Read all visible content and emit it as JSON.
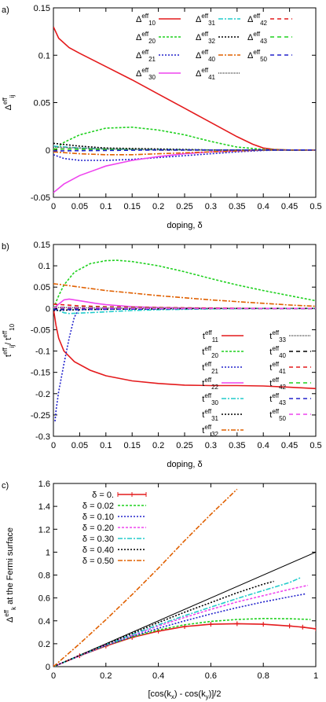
{
  "chart_data": [
    {
      "type": "line",
      "panel": "a)",
      "xlabel": "doping, δ",
      "ylabel": {
        "base": "Δ",
        "sup": "eff",
        "sub": "ij"
      },
      "xlim": [
        0,
        0.5
      ],
      "ylim": [
        -0.05,
        0.15
      ],
      "xticks": [
        "0",
        "0.05",
        "0.1",
        "0.15",
        "0.2",
        "0.25",
        "0.3",
        "0.35",
        "0.4",
        "0.45",
        "0.5"
      ],
      "yticks": [
        "-0.05",
        "0",
        "0.05",
        "0.1",
        "0.15"
      ],
      "legend_position": "top-right",
      "series": [
        {
          "name": "10",
          "label_base": "Δ",
          "color": "#e41a1c",
          "dash": "",
          "x": [
            0,
            0.01,
            0.03,
            0.05,
            0.1,
            0.15,
            0.2,
            0.25,
            0.3,
            0.35,
            0.38,
            0.4,
            0.42,
            0.45,
            0.5
          ],
          "y": [
            0.13,
            0.118,
            0.108,
            0.102,
            0.088,
            0.074,
            0.059,
            0.044,
            0.029,
            0.014,
            0.006,
            0.002,
            0.0005,
            0,
            0
          ]
        },
        {
          "name": "20",
          "label_base": "Δ",
          "color": "#1fd11f",
          "dash": "3,2",
          "x": [
            0,
            0.02,
            0.05,
            0.1,
            0.15,
            0.2,
            0.25,
            0.3,
            0.35,
            0.4,
            0.45,
            0.5
          ],
          "y": [
            0,
            0.008,
            0.016,
            0.023,
            0.024,
            0.021,
            0.016,
            0.009,
            0.003,
            0.0005,
            0,
            0
          ]
        },
        {
          "name": "21",
          "label_base": "Δ",
          "color": "#2222cc",
          "dash": "2,2",
          "x": [
            0,
            0.02,
            0.05,
            0.1,
            0.15,
            0.2,
            0.25,
            0.3,
            0.35,
            0.4,
            0.45,
            0.5
          ],
          "y": [
            -0.005,
            -0.009,
            -0.011,
            -0.011,
            -0.01,
            -0.008,
            -0.006,
            -0.004,
            -0.002,
            -0.0005,
            0,
            0
          ]
        },
        {
          "name": "30",
          "label_base": "Δ",
          "color": "#ee44ee",
          "dash": "",
          "x": [
            0,
            0.02,
            0.05,
            0.1,
            0.15,
            0.2,
            0.25,
            0.3,
            0.35,
            0.4,
            0.45,
            0.5
          ],
          "y": [
            -0.045,
            -0.036,
            -0.027,
            -0.017,
            -0.011,
            -0.007,
            -0.004,
            -0.002,
            -0.001,
            0,
            0,
            0
          ]
        },
        {
          "name": "31",
          "label_base": "Δ",
          "color": "#22cccc",
          "dash": "6,2,2,2",
          "x": [
            0,
            0.05,
            0.1,
            0.2,
            0.3,
            0.4,
            0.5
          ],
          "y": [
            0.004,
            0.002,
            0.001,
            0.0005,
            0,
            0,
            0
          ]
        },
        {
          "name": "32",
          "label_base": "Δ",
          "color": "#000000",
          "dash": "2,2",
          "x": [
            0,
            0.05,
            0.1,
            0.2,
            0.3,
            0.4,
            0.5
          ],
          "y": [
            0.007,
            0.004,
            0.002,
            0.001,
            0,
            0,
            0
          ]
        },
        {
          "name": "40",
          "label_base": "Δ",
          "color": "#e06000",
          "dash": "6,2,2,2",
          "x": [
            0,
            0.05,
            0.1,
            0.15,
            0.2,
            0.3,
            0.4,
            0.5
          ],
          "y": [
            -0.002,
            -0.004,
            -0.005,
            -0.005,
            -0.004,
            -0.002,
            0,
            0
          ]
        },
        {
          "name": "41",
          "label_base": "Δ",
          "color": "#555555",
          "dash": "1,1",
          "x": [
            0,
            0.05,
            0.1,
            0.2,
            0.3,
            0.4,
            0.5
          ],
          "y": [
            0.003,
            0.002,
            0.001,
            0,
            0,
            0,
            0
          ]
        },
        {
          "name": "42",
          "label_base": "Δ",
          "color": "#e41a1c",
          "dash": "5,4",
          "x": [
            0,
            0.1,
            0.2,
            0.3,
            0.4,
            0.5
          ],
          "y": [
            0.001,
            0.0005,
            0,
            0,
            0,
            0
          ]
        },
        {
          "name": "43",
          "label_base": "Δ",
          "color": "#1fd11f",
          "dash": "5,4",
          "x": [
            0,
            0.1,
            0.2,
            0.3,
            0.4,
            0.5
          ],
          "y": [
            0.001,
            0.0005,
            0,
            0,
            0,
            0
          ]
        },
        {
          "name": "50",
          "label_base": "Δ",
          "color": "#2222cc",
          "dash": "5,4",
          "x": [
            0,
            0.1,
            0.2,
            0.3,
            0.4,
            0.5
          ],
          "y": [
            -0.001,
            -0.0005,
            0,
            0,
            0,
            0
          ]
        }
      ]
    },
    {
      "type": "line",
      "panel": "b)",
      "xlabel": "doping, δ",
      "ylabel": {
        "base": "t",
        "sup": "eff",
        "sub": "ij",
        "base2": "/ t",
        "sup2": "eff",
        "sub2": "10"
      },
      "xlim": [
        0,
        0.5
      ],
      "ylim": [
        -0.3,
        0.15
      ],
      "xticks": [
        "0",
        "0.05",
        "0.1",
        "0.15",
        "0.2",
        "0.25",
        "0.3",
        "0.35",
        "0.4",
        "0.45",
        "0.5"
      ],
      "yticks": [
        "-0.3",
        "-0.25",
        "-0.2",
        "-0.15",
        "-0.1",
        "-0.05",
        "0",
        "0.05",
        "0.1",
        "0.15"
      ],
      "legend_position": "bottom-right",
      "series": [
        {
          "name": "11",
          "label_base": "t",
          "color": "#e41a1c",
          "dash": "",
          "x": [
            0,
            0.005,
            0.01,
            0.02,
            0.04,
            0.07,
            0.1,
            0.15,
            0.2,
            0.25,
            0.3,
            0.35,
            0.4,
            0.45,
            0.5
          ],
          "y": [
            0,
            -0.04,
            -0.07,
            -0.1,
            -0.125,
            -0.145,
            -0.158,
            -0.17,
            -0.176,
            -0.18,
            -0.181,
            -0.181,
            -0.182,
            -0.185,
            -0.188
          ]
        },
        {
          "name": "20",
          "label_base": "t",
          "color": "#1fd11f",
          "dash": "3,2",
          "x": [
            0,
            0.01,
            0.02,
            0.04,
            0.07,
            0.1,
            0.12,
            0.15,
            0.2,
            0.25,
            0.3,
            0.35,
            0.4,
            0.45,
            0.5
          ],
          "y": [
            0,
            0.03,
            0.055,
            0.085,
            0.105,
            0.112,
            0.113,
            0.11,
            0.1,
            0.086,
            0.07,
            0.055,
            0.042,
            0.03,
            0.018
          ]
        },
        {
          "name": "21",
          "label_base": "t",
          "color": "#2222cc",
          "dash": "2,2",
          "x": [
            0.003,
            0.005,
            0.01,
            0.02,
            0.03,
            0.04,
            0.05
          ],
          "y": [
            -0.265,
            -0.24,
            -0.195,
            -0.13,
            -0.07,
            -0.02,
            0
          ]
        },
        {
          "name": "22",
          "label_base": "t",
          "color": "#ee44ee",
          "dash": "",
          "x": [
            0,
            0.01,
            0.02,
            0.03,
            0.05,
            0.08,
            0.1,
            0.15,
            0.2,
            0.3,
            0.4,
            0.5
          ],
          "y": [
            0,
            0.01,
            0.02,
            0.022,
            0.018,
            0.012,
            0.009,
            0.004,
            0.002,
            0,
            0,
            0
          ]
        },
        {
          "name": "30",
          "label_base": "t",
          "color": "#22cccc",
          "dash": "6,2,2,2",
          "x": [
            0,
            0.01,
            0.02,
            0.03,
            0.05,
            0.1,
            0.15,
            0.2,
            0.3,
            0.4,
            0.5
          ],
          "y": [
            0,
            -0.005,
            -0.01,
            -0.012,
            -0.011,
            -0.008,
            -0.005,
            -0.003,
            -0.001,
            0,
            0
          ]
        },
        {
          "name": "31",
          "label_base": "t",
          "color": "#000000",
          "dash": "2,2",
          "x": [
            0,
            0.02,
            0.05,
            0.1,
            0.2,
            0.3,
            0.4,
            0.5
          ],
          "y": [
            -0.005,
            -0.004,
            -0.003,
            -0.002,
            -0.001,
            0,
            0,
            0
          ]
        },
        {
          "name": "32",
          "label_base": "t",
          "color": "#e06000",
          "dash": "6,2,2,2",
          "x": [
            0,
            0.02,
            0.05,
            0.1,
            0.15,
            0.2,
            0.25,
            0.3,
            0.35,
            0.4,
            0.45,
            0.5
          ],
          "y": [
            0.058,
            0.055,
            0.05,
            0.042,
            0.036,
            0.03,
            0.025,
            0.02,
            0.016,
            0.012,
            0.008,
            0.005
          ]
        },
        {
          "name": "33",
          "label_base": "t",
          "color": "#555555",
          "dash": "1,1",
          "x": [
            0,
            0.1,
            0.2,
            0.3,
            0.4,
            0.5
          ],
          "y": [
            0.002,
            0.001,
            0,
            0,
            0,
            0
          ]
        },
        {
          "name": "40",
          "label_base": "t",
          "color": "#000000",
          "dash": "5,4",
          "x": [
            0,
            0.1,
            0.2,
            0.3,
            0.4,
            0.5
          ],
          "y": [
            -0.002,
            -0.001,
            0,
            0,
            0,
            0
          ]
        },
        {
          "name": "41",
          "label_base": "t",
          "color": "#e41a1c",
          "dash": "5,4",
          "x": [
            0,
            0.05,
            0.1,
            0.2,
            0.3,
            0.4,
            0.5
          ],
          "y": [
            0.01,
            0.006,
            0.004,
            0.002,
            0.001,
            0,
            0
          ]
        },
        {
          "name": "42",
          "label_base": "t",
          "color": "#1fd11f",
          "dash": "5,4",
          "x": [
            0,
            0.1,
            0.2,
            0.3,
            0.4,
            0.5
          ],
          "y": [
            0.003,
            0.002,
            0.001,
            0,
            0,
            0
          ]
        },
        {
          "name": "43",
          "label_base": "t",
          "color": "#2222cc",
          "dash": "5,4",
          "x": [
            0,
            0.1,
            0.2,
            0.3,
            0.4,
            0.5
          ],
          "y": [
            -0.003,
            -0.002,
            -0.001,
            0,
            0,
            0
          ]
        },
        {
          "name": "50",
          "label_base": "t",
          "color": "#ee44ee",
          "dash": "5,4",
          "x": [
            0,
            0.1,
            0.2,
            0.3,
            0.4,
            0.5
          ],
          "y": [
            0.002,
            0.001,
            0,
            0,
            0,
            0
          ]
        }
      ]
    },
    {
      "type": "line",
      "panel": "c)",
      "xlabel": "[cos(k",
      "xlabel_parts": [
        "[cos(k",
        "x",
        ") - cos(k",
        "y",
        ")]/2"
      ],
      "ylabel": {
        "base": "Δ",
        "sup": "eff",
        "sub": "k",
        "rest": " at the Fermi surface"
      },
      "xlim": [
        0,
        1
      ],
      "ylim": [
        0,
        1.6
      ],
      "xticks": [
        "0",
        "0.2",
        "0.4",
        "0.6",
        "0.8",
        "1"
      ],
      "yticks": [
        "0",
        "0.2",
        "0.4",
        "0.6",
        "0.8",
        "1",
        "1.2",
        "1.4",
        "1.6"
      ],
      "legend_position": "top-left",
      "reference_line": {
        "x": [
          0,
          1
        ],
        "y": [
          0,
          1
        ],
        "color": "#000000"
      },
      "series": [
        {
          "name": "δ = 0.",
          "color": "#e41a1c",
          "dash": "",
          "markers": true,
          "x": [
            0,
            0.1,
            0.2,
            0.3,
            0.4,
            0.5,
            0.6,
            0.7,
            0.8,
            0.9,
            0.95,
            1.0
          ],
          "y": [
            0,
            0.095,
            0.18,
            0.255,
            0.31,
            0.35,
            0.37,
            0.375,
            0.37,
            0.355,
            0.345,
            0.33
          ]
        },
        {
          "name": "δ = 0.02",
          "color": "#1fd11f",
          "dash": "3,2",
          "markers": false,
          "x": [
            0,
            0.1,
            0.2,
            0.3,
            0.4,
            0.5,
            0.6,
            0.7,
            0.8,
            0.9,
            0.98
          ],
          "y": [
            0,
            0.095,
            0.185,
            0.26,
            0.32,
            0.365,
            0.395,
            0.412,
            0.42,
            0.418,
            0.412
          ]
        },
        {
          "name": "δ = 0.10",
          "color": "#2222cc",
          "dash": "2,2",
          "markers": false,
          "x": [
            0,
            0.1,
            0.2,
            0.3,
            0.4,
            0.5,
            0.6,
            0.7,
            0.8,
            0.9,
            0.96
          ],
          "y": [
            0,
            0.095,
            0.185,
            0.265,
            0.335,
            0.4,
            0.46,
            0.515,
            0.565,
            0.61,
            0.635
          ]
        },
        {
          "name": "δ = 0.20",
          "color": "#ee44ee",
          "dash": "3,2",
          "markers": false,
          "x": [
            0,
            0.1,
            0.2,
            0.3,
            0.4,
            0.5,
            0.6,
            0.7,
            0.8,
            0.9,
            0.97
          ],
          "y": [
            0,
            0.095,
            0.19,
            0.275,
            0.355,
            0.43,
            0.5,
            0.565,
            0.62,
            0.675,
            0.71
          ]
        },
        {
          "name": "δ = 0.30",
          "color": "#22cccc",
          "dash": "6,2,2,2",
          "markers": false,
          "x": [
            0,
            0.1,
            0.2,
            0.3,
            0.4,
            0.5,
            0.6,
            0.7,
            0.8,
            0.9,
            0.94
          ],
          "y": [
            0,
            0.097,
            0.192,
            0.28,
            0.365,
            0.445,
            0.52,
            0.595,
            0.665,
            0.735,
            0.775
          ]
        },
        {
          "name": "δ = 0.40",
          "color": "#000000",
          "dash": "2,2",
          "markers": false,
          "x": [
            0,
            0.1,
            0.2,
            0.3,
            0.4,
            0.5,
            0.6,
            0.7,
            0.8,
            0.84
          ],
          "y": [
            0,
            0.098,
            0.195,
            0.29,
            0.385,
            0.475,
            0.56,
            0.645,
            0.72,
            0.745
          ]
        },
        {
          "name": "δ = 0.50",
          "color": "#e06000",
          "dash": "6,2,2,2",
          "markers": false,
          "x": [
            0,
            0.1,
            0.2,
            0.3,
            0.4,
            0.5,
            0.6,
            0.7
          ],
          "y": [
            0,
            0.2,
            0.41,
            0.63,
            0.86,
            1.1,
            1.33,
            1.55
          ]
        }
      ]
    }
  ]
}
